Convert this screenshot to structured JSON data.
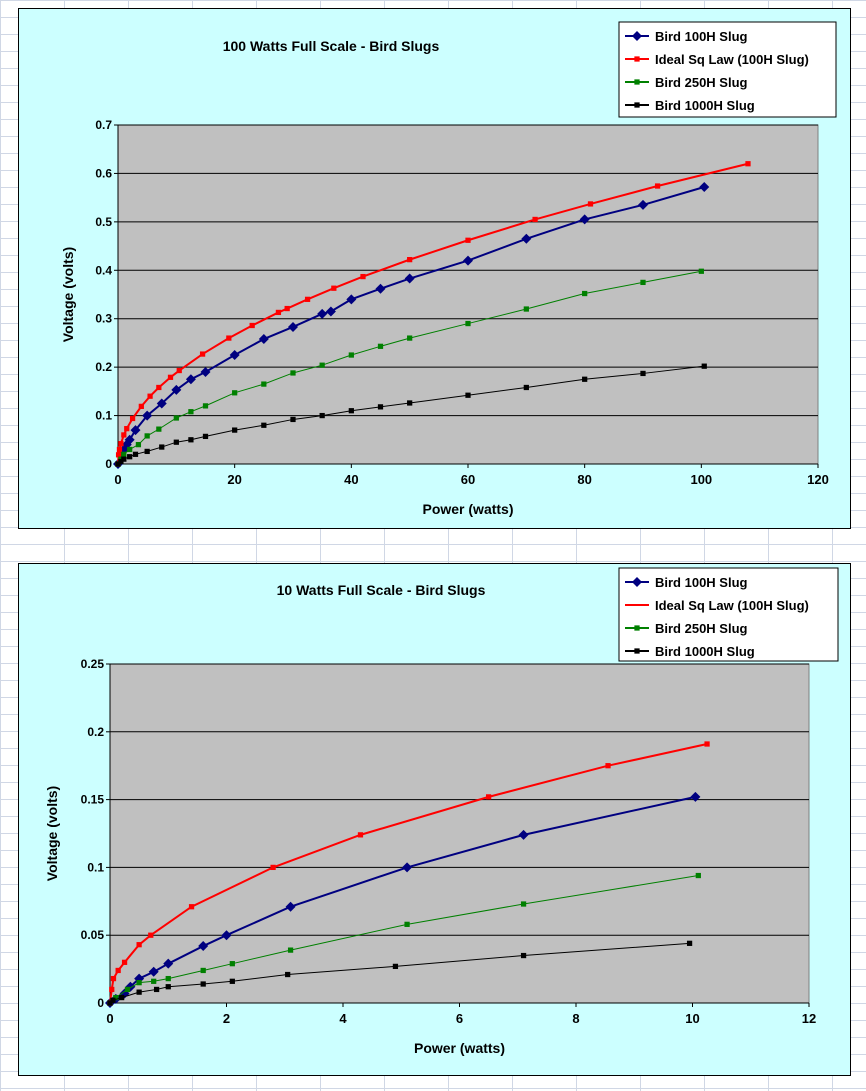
{
  "chart_data": [
    {
      "type": "line",
      "title": "100 Watts Full Scale - Bird Slugs",
      "xlabel": "Power (watts)",
      "ylabel": "Voltage (volts)",
      "xlim": [
        0,
        120
      ],
      "ylim": [
        0,
        0.7
      ],
      "xticks": [
        "0",
        "20",
        "40",
        "60",
        "80",
        "100",
        "120"
      ],
      "yticks": [
        "0",
        "0.1",
        "0.2",
        "0.3",
        "0.4",
        "0.5",
        "0.6",
        "0.7"
      ],
      "xtick_values": [
        0,
        20,
        40,
        60,
        80,
        100,
        120
      ],
      "ytick_values": [
        0,
        0.1,
        0.2,
        0.3,
        0.4,
        0.5,
        0.6,
        0.7
      ],
      "grid": "horizontal",
      "legend": "top-right",
      "series": [
        {
          "name": "Bird 100H Slug",
          "color": "#000080",
          "marker": "diamond",
          "points": [
            [
              0,
              0
            ],
            [
              0.5,
              0.02
            ],
            [
              1,
              0.03
            ],
            [
              1.5,
              0.04
            ],
            [
              2,
              0.05
            ],
            [
              3,
              0.07
            ],
            [
              5,
              0.1
            ],
            [
              7.5,
              0.125
            ],
            [
              10,
              0.153
            ],
            [
              12.5,
              0.175
            ],
            [
              15,
              0.19
            ],
            [
              20,
              0.225
            ],
            [
              25,
              0.258
            ],
            [
              30,
              0.283
            ],
            [
              35,
              0.31
            ],
            [
              36.5,
              0.315
            ],
            [
              40,
              0.34
            ],
            [
              45,
              0.362
            ],
            [
              50,
              0.383
            ],
            [
              60,
              0.42
            ],
            [
              70,
              0.465
            ],
            [
              80,
              0.505
            ],
            [
              90,
              0.535
            ],
            [
              100.5,
              0.572
            ]
          ]
        },
        {
          "name": "Ideal Sq Law (100H Slug)",
          "color": "#ff0000",
          "marker": "square",
          "points": [
            [
              0,
              0
            ],
            [
              0.1,
              0.019
            ],
            [
              0.25,
              0.03
            ],
            [
              0.5,
              0.042
            ],
            [
              1,
              0.06
            ],
            [
              1.5,
              0.073
            ],
            [
              2.5,
              0.094
            ],
            [
              4,
              0.119
            ],
            [
              5.5,
              0.14
            ],
            [
              7,
              0.158
            ],
            [
              9,
              0.179
            ],
            [
              10.5,
              0.193
            ],
            [
              14.5,
              0.227
            ],
            [
              19,
              0.26
            ],
            [
              23,
              0.286
            ],
            [
              27.5,
              0.313
            ],
            [
              29,
              0.321
            ],
            [
              32.5,
              0.34
            ],
            [
              37,
              0.363
            ],
            [
              42,
              0.387
            ],
            [
              50,
              0.422
            ],
            [
              60,
              0.462
            ],
            [
              71.5,
              0.505
            ],
            [
              81,
              0.537
            ],
            [
              92.5,
              0.574
            ],
            [
              108,
              0.62
            ]
          ]
        },
        {
          "name": "Bird 250H Slug",
          "color": "#008000",
          "marker": "square",
          "points": [
            [
              0,
              0
            ],
            [
              0.5,
              0.01
            ],
            [
              1,
              0.02
            ],
            [
              2,
              0.03
            ],
            [
              3.5,
              0.04
            ],
            [
              5,
              0.058
            ],
            [
              7,
              0.072
            ],
            [
              10,
              0.095
            ],
            [
              12.5,
              0.108
            ],
            [
              15,
              0.12
            ],
            [
              20,
              0.147
            ],
            [
              25,
              0.165
            ],
            [
              30,
              0.188
            ],
            [
              35,
              0.204
            ],
            [
              40,
              0.225
            ],
            [
              45,
              0.243
            ],
            [
              50,
              0.26
            ],
            [
              60,
              0.29
            ],
            [
              70,
              0.32
            ],
            [
              80,
              0.352
            ],
            [
              90,
              0.375
            ],
            [
              100,
              0.398
            ]
          ]
        },
        {
          "name": "Bird 1000H Slug",
          "color": "#000000",
          "marker": "square",
          "points": [
            [
              0,
              0
            ],
            [
              0.5,
              0.005
            ],
            [
              1,
              0.01
            ],
            [
              2,
              0.015
            ],
            [
              3,
              0.02
            ],
            [
              5,
              0.026
            ],
            [
              7.5,
              0.035
            ],
            [
              10,
              0.045
            ],
            [
              12.5,
              0.05
            ],
            [
              15,
              0.057
            ],
            [
              20,
              0.07
            ],
            [
              25,
              0.08
            ],
            [
              30,
              0.092
            ],
            [
              35,
              0.1
            ],
            [
              40,
              0.11
            ],
            [
              45,
              0.118
            ],
            [
              50,
              0.126
            ],
            [
              60,
              0.142
            ],
            [
              70,
              0.158
            ],
            [
              80,
              0.175
            ],
            [
              90,
              0.187
            ],
            [
              100.5,
              0.202
            ]
          ]
        }
      ]
    },
    {
      "type": "line",
      "title": "10 Watts Full Scale - Bird Slugs",
      "xlabel": "Power (watts)",
      "ylabel": "Voltage (volts)",
      "xlim": [
        0,
        12
      ],
      "ylim": [
        0,
        0.25
      ],
      "xticks": [
        "0",
        "2",
        "4",
        "6",
        "8",
        "10",
        "12"
      ],
      "yticks": [
        "0",
        "0.05",
        "0.1",
        "0.15",
        "0.2",
        "0.25"
      ],
      "xtick_values": [
        0,
        2,
        4,
        6,
        8,
        10,
        12
      ],
      "ytick_values": [
        0,
        0.05,
        0.1,
        0.15,
        0.2,
        0.25
      ],
      "grid": "horizontal",
      "legend": "top-right",
      "series": [
        {
          "name": "Bird 100H Slug",
          "color": "#000080",
          "marker": "diamond",
          "points": [
            [
              0,
              0
            ],
            [
              0.1,
              0.003
            ],
            [
              0.25,
              0.007
            ],
            [
              0.35,
              0.012
            ],
            [
              0.5,
              0.018
            ],
            [
              0.75,
              0.023
            ],
            [
              1,
              0.029
            ],
            [
              1.6,
              0.042
            ],
            [
              2,
              0.05
            ],
            [
              3.1,
              0.071
            ],
            [
              5.1,
              0.1
            ],
            [
              7.1,
              0.124
            ],
            [
              10.05,
              0.152
            ]
          ]
        },
        {
          "name": "Ideal Sq Law (100H Slug)",
          "color": "#ff0000",
          "marker": "square",
          "points": [
            [
              0,
              0
            ],
            [
              0.03,
              0.01
            ],
            [
              0.06,
              0.018
            ],
            [
              0.14,
              0.024
            ],
            [
              0.25,
              0.03
            ],
            [
              0.5,
              0.043
            ],
            [
              0.7,
              0.05
            ],
            [
              1.4,
              0.071
            ],
            [
              2.8,
              0.1
            ],
            [
              4.3,
              0.124
            ],
            [
              6.5,
              0.152
            ],
            [
              8.55,
              0.175
            ],
            [
              10.25,
              0.191
            ]
          ]
        },
        {
          "name": "Bird 250H Slug",
          "color": "#008000",
          "marker": "square",
          "points": [
            [
              0,
              0
            ],
            [
              0.1,
              0.004
            ],
            [
              0.3,
              0.01
            ],
            [
              0.5,
              0.015
            ],
            [
              0.75,
              0.016
            ],
            [
              1,
              0.018
            ],
            [
              1.6,
              0.024
            ],
            [
              2.1,
              0.029
            ],
            [
              3.1,
              0.039
            ],
            [
              5.1,
              0.058
            ],
            [
              7.1,
              0.073
            ],
            [
              10.1,
              0.094
            ]
          ]
        },
        {
          "name": "Bird 1000H Slug",
          "color": "#000000",
          "marker": "square",
          "points": [
            [
              0,
              0
            ],
            [
              0.05,
              0.002
            ],
            [
              0.2,
              0.004
            ],
            [
              0.5,
              0.008
            ],
            [
              0.8,
              0.01
            ],
            [
              1,
              0.012
            ],
            [
              1.6,
              0.014
            ],
            [
              2.1,
              0.016
            ],
            [
              3.05,
              0.021
            ],
            [
              4.9,
              0.027
            ],
            [
              7.1,
              0.035
            ],
            [
              9.95,
              0.044
            ]
          ]
        }
      ]
    }
  ]
}
